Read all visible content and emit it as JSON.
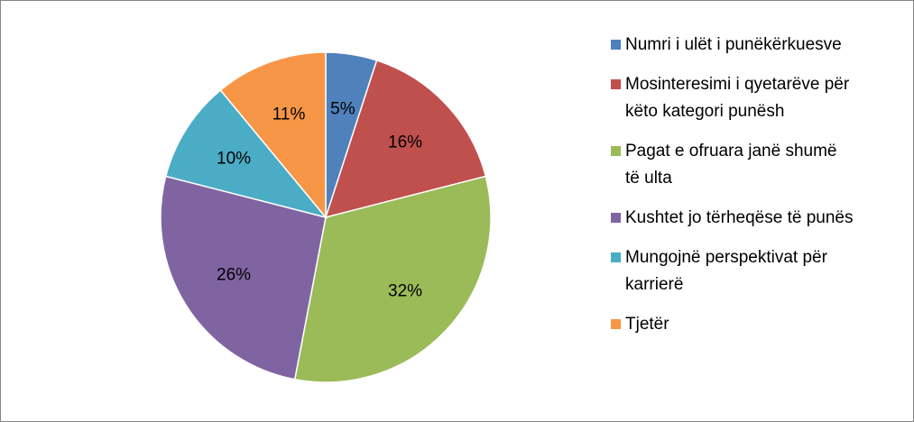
{
  "chart_data": {
    "type": "pie",
    "categories": [
      "Numri i ulët i punëkërkuesve",
      "Mosinteresimi i qyetarëve për këto kategori punësh",
      "Pagat e ofruara janë shumë të ulta",
      "Kushtet jo tërheqëse të punës",
      "Mungojnë perspektivat për karrierë",
      "Tjetër"
    ],
    "values": [
      5,
      16,
      32,
      26,
      10,
      11
    ],
    "value_labels": [
      "5%",
      "16%",
      "32%",
      "26%",
      "10%",
      "11%"
    ],
    "colors": [
      "#4f81bd",
      "#c0504d",
      "#9bbb59",
      "#8064a2",
      "#4bacc6",
      "#f79646"
    ],
    "legend": "right"
  }
}
